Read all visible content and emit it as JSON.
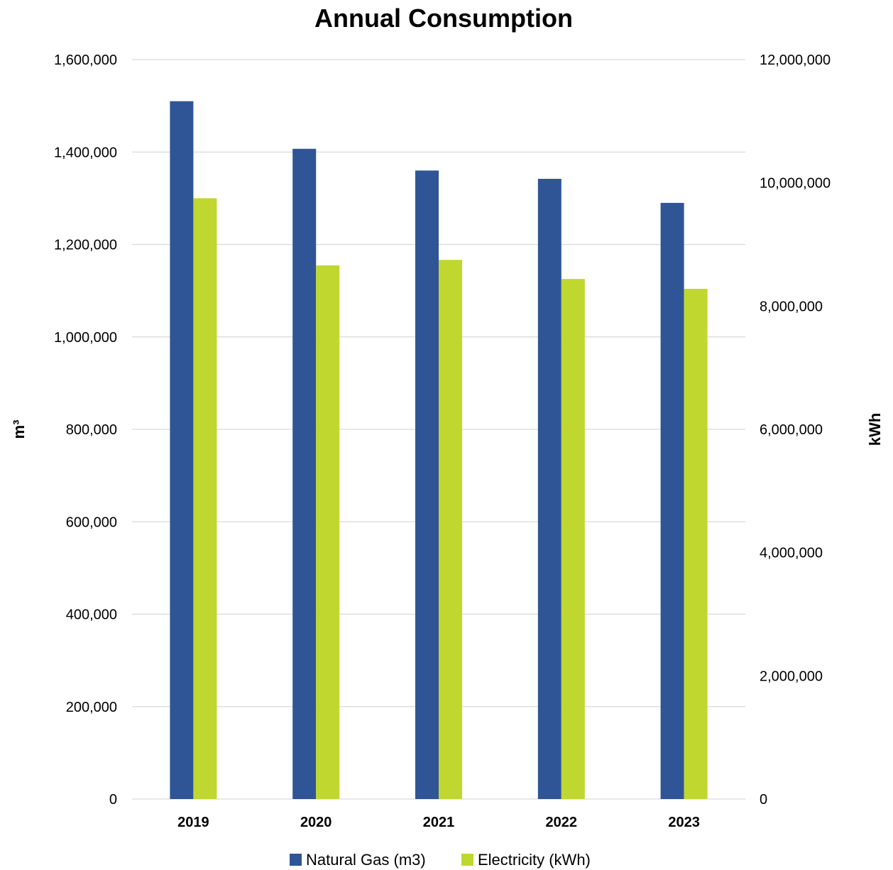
{
  "chart_data": {
    "type": "bar",
    "title": "Annual Consumption",
    "categories": [
      "2019",
      "2020",
      "2021",
      "2022",
      "2023"
    ],
    "series": [
      {
        "name": "Natural Gas (m3)",
        "axis": "left",
        "color": "#2f5597",
        "values": [
          1510000,
          1407000,
          1360000,
          1342000,
          1290000
        ]
      },
      {
        "name": "Electricity (kWh)",
        "axis": "right",
        "color": "#c0d72f",
        "values": [
          9750000,
          8660000,
          8750000,
          8440000,
          8280000
        ]
      }
    ],
    "y_left": {
      "label": "m³",
      "range": [
        0,
        1600000
      ],
      "ticks": [
        "0",
        "200,000",
        "400,000",
        "600,000",
        "800,000",
        "1,000,000",
        "1,200,000",
        "1,400,000",
        "1,600,000"
      ]
    },
    "y_right": {
      "label": "kWh",
      "range": [
        0,
        12000000
      ],
      "ticks": [
        "0",
        "2,000,000",
        "4,000,000",
        "6,000,000",
        "8,000,000",
        "10,000,000",
        "12,000,000"
      ]
    },
    "grid": true,
    "gridline_color": "#d9d9d9",
    "legend_position": "bottom"
  }
}
